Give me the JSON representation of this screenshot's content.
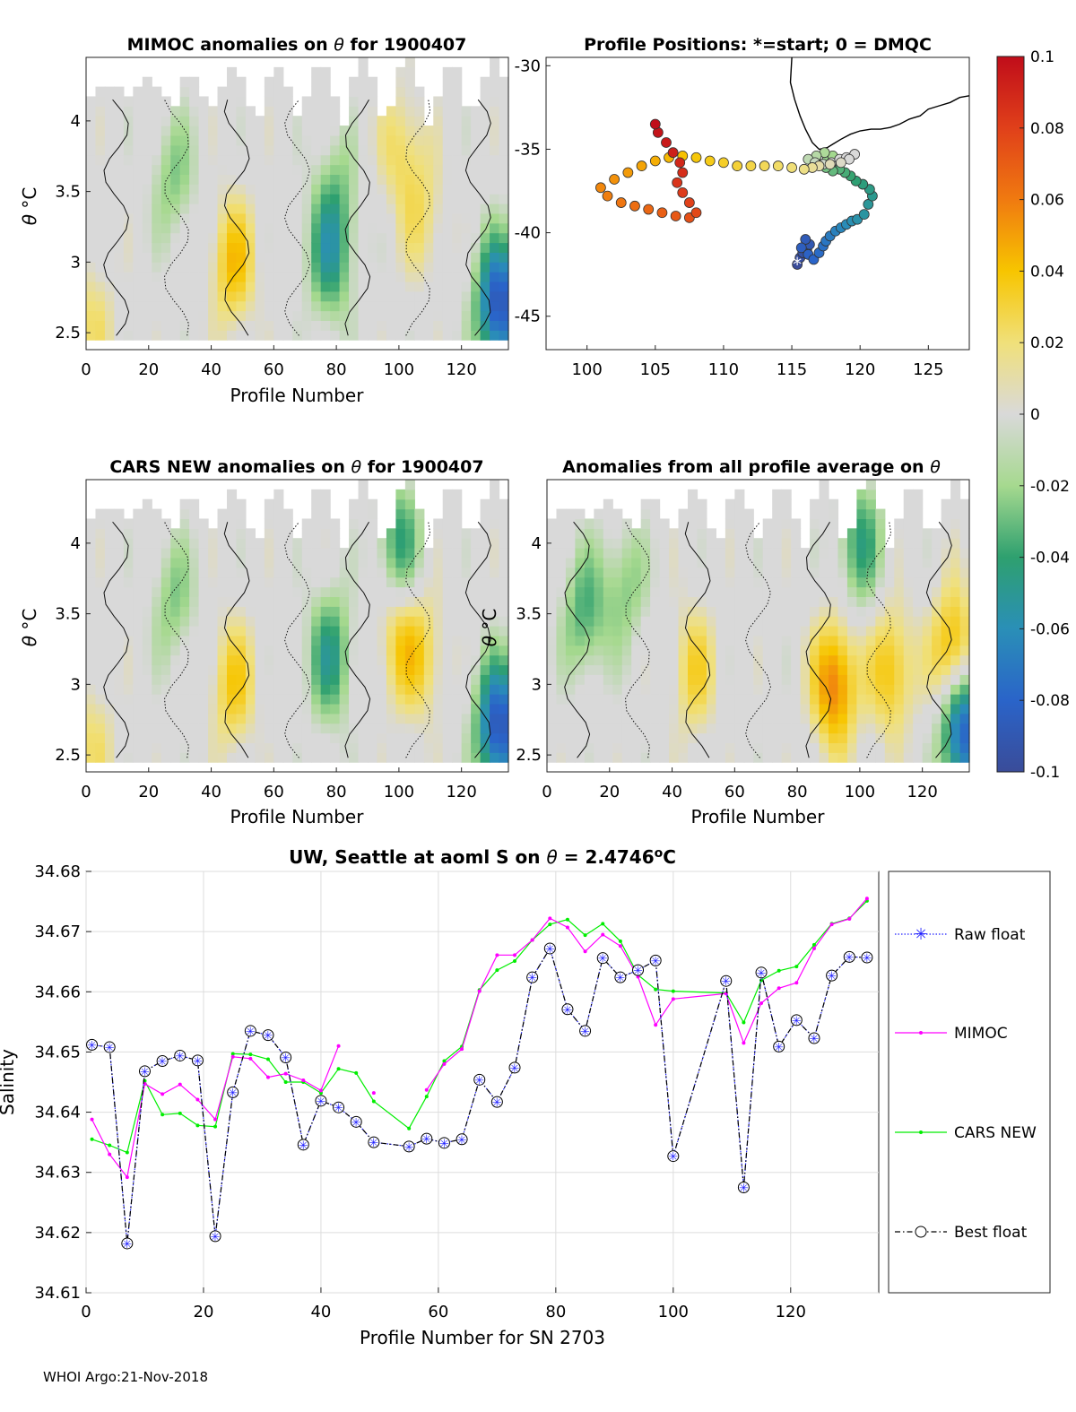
{
  "footer": "WHOI Argo:21-Nov-2018",
  "colors": {
    "raw": "#1f1fff",
    "mimoc": "#ff00ff",
    "cars": "#00ee00",
    "best": "#000000",
    "grid": "#dddddd"
  },
  "chart_data": [
    {
      "id": "mimoc-anom",
      "type": "heatmap",
      "title_prefix": "MIMOC anomalies on",
      "title_symbol": "θ",
      "title_suffix": "for 1900407",
      "xlabel": "Profile Number",
      "ylabel_symbol": "θ",
      "ylabel_unit": "°C",
      "xlim": [
        0,
        135
      ],
      "ylim": [
        2.38,
        4.45
      ],
      "xticks": [
        "0",
        "20",
        "40",
        "60",
        "80",
        "100",
        "120"
      ],
      "yticks": [
        "2.5",
        "3",
        "3.5",
        "4"
      ],
      "anomalies": [
        {
          "x": 28,
          "y": 3.6,
          "value": -0.025
        },
        {
          "x": 78,
          "y": 3.05,
          "value": -0.045
        },
        {
          "x": 80,
          "y": 3.5,
          "value": -0.02
        },
        {
          "x": 101,
          "y": 3.8,
          "value": 0.025
        },
        {
          "x": 108,
          "y": 3.3,
          "value": 0.02
        },
        {
          "x": 47,
          "y": 3.0,
          "value": 0.04
        },
        {
          "x": 2,
          "y": 2.6,
          "value": 0.02
        },
        {
          "x": 132,
          "y": 2.7,
          "value": -0.09
        }
      ]
    },
    {
      "id": "positions",
      "type": "scatter",
      "title": "Profile Positions: *=start; 0 = DMQC",
      "xlim": [
        97,
        128
      ],
      "ylim": [
        -47,
        -29.5
      ],
      "xticks": [
        "100",
        "105",
        "110",
        "115",
        "120",
        "125"
      ],
      "yticks": [
        "-30",
        "-35",
        "-40",
        "-45"
      ],
      "start_marker": "*",
      "track_lon": [
        115.4,
        115.6,
        115.8,
        116.1,
        116.3,
        116.0,
        115.7,
        116.2,
        116.6,
        117.0,
        117.3,
        117.5,
        117.8,
        118.2,
        118.6,
        119.0,
        119.4,
        119.8,
        120.3,
        120.6,
        120.9,
        120.7,
        120.2,
        119.7,
        119.3,
        118.9,
        118.5,
        118.0,
        117.5,
        117.2,
        117.6,
        118.0,
        117.4,
        116.8,
        116.2,
        116.7,
        117.3,
        117.9,
        118.5,
        119.0,
        119.6,
        119.2,
        118.6,
        117.8,
        117.0,
        116.5,
        115.9,
        115.0,
        114.0,
        113.0,
        112.0,
        111.0,
        110.0,
        109.0,
        108.0,
        107.0,
        106.0,
        105.0,
        104.0,
        103.0,
        102.0,
        101.0,
        101.5,
        102.5,
        103.5,
        104.5,
        105.5,
        106.5,
        107.5,
        108.0,
        107.5,
        107.0,
        106.6,
        107.0,
        106.8,
        106.3,
        105.8,
        105.2,
        105.0
      ],
      "track_lat": [
        -41.9,
        -41.5,
        -41.2,
        -41.0,
        -40.7,
        -40.4,
        -40.9,
        -41.3,
        -41.6,
        -41.2,
        -40.8,
        -40.5,
        -40.2,
        -39.9,
        -39.7,
        -39.5,
        -39.3,
        -39.2,
        -38.9,
        -38.3,
        -37.8,
        -37.4,
        -37.1,
        -36.9,
        -36.6,
        -36.4,
        -36.2,
        -36.3,
        -36.1,
        -35.9,
        -35.6,
        -35.4,
        -35.2,
        -35.4,
        -35.6,
        -35.8,
        -35.9,
        -35.8,
        -35.6,
        -35.5,
        -35.3,
        -35.6,
        -35.8,
        -35.9,
        -36.0,
        -36.1,
        -36.2,
        -36.1,
        -36.0,
        -36.0,
        -36.0,
        -36.0,
        -35.8,
        -35.7,
        -35.5,
        -35.4,
        -35.5,
        -35.7,
        -36.0,
        -36.4,
        -36.8,
        -37.3,
        -37.8,
        -38.2,
        -38.4,
        -38.6,
        -38.8,
        -39.0,
        -39.1,
        -38.8,
        -38.2,
        -37.6,
        -37.0,
        -36.4,
        -35.8,
        -35.2,
        -34.6,
        -34.0,
        -33.5
      ],
      "coast_lon": [
        115.0,
        114.9,
        115.2,
        115.6,
        116.0,
        116.5,
        117.0,
        117.6,
        118.0,
        118.6,
        119.3,
        120.0,
        120.8,
        121.5,
        122.2,
        122.9,
        123.6,
        124.4,
        125.0,
        125.8,
        126.6,
        127.3,
        128.0
      ],
      "coast_lat": [
        -29.5,
        -31.0,
        -32.0,
        -33.0,
        -33.8,
        -34.6,
        -35.0,
        -34.9,
        -34.7,
        -34.4,
        -34.1,
        -33.9,
        -33.8,
        -33.8,
        -33.7,
        -33.5,
        -33.2,
        -33.0,
        -32.6,
        -32.4,
        -32.2,
        -31.9,
        -31.8
      ]
    },
    {
      "id": "colorbar",
      "type": "colorbar",
      "ticks": [
        "0.1",
        "0.08",
        "0.06",
        "0.04",
        "0.02",
        "0",
        "-0.02",
        "-0.04",
        "-0.06",
        "-0.08",
        "-0.1"
      ],
      "range": [
        -0.1,
        0.1
      ]
    },
    {
      "id": "cars-anom",
      "type": "heatmap",
      "title_prefix": "CARS NEW anomalies on",
      "title_symbol": "θ",
      "title_suffix": "for 1900407",
      "xlabel": "Profile Number",
      "ylabel_symbol": "θ",
      "ylabel_unit": "°C",
      "xlim": [
        0,
        135
      ],
      "ylim": [
        2.38,
        4.45
      ],
      "xticks": [
        "0",
        "20",
        "40",
        "60",
        "80",
        "100",
        "120"
      ],
      "yticks": [
        "2.5",
        "3",
        "3.5",
        "4"
      ],
      "anomalies": [
        {
          "x": 28,
          "y": 3.6,
          "value": -0.025
        },
        {
          "x": 78,
          "y": 3.2,
          "value": -0.045
        },
        {
          "x": 100,
          "y": 4.0,
          "value": -0.04
        },
        {
          "x": 100,
          "y": 3.3,
          "value": 0.03
        },
        {
          "x": 108,
          "y": 3.2,
          "value": 0.025
        },
        {
          "x": 47,
          "y": 3.0,
          "value": 0.035
        },
        {
          "x": 2,
          "y": 2.6,
          "value": 0.02
        },
        {
          "x": 132,
          "y": 2.7,
          "value": -0.09
        }
      ]
    },
    {
      "id": "all-avg-anom",
      "type": "heatmap",
      "title_prefix": "Anomalies from all profile average on",
      "title_symbol": "θ",
      "title_suffix": "",
      "xlabel": "Profile Number",
      "ylabel_symbol": "θ",
      "ylabel_unit": "°C",
      "xlim": [
        0,
        135
      ],
      "ylim": [
        2.38,
        4.45
      ],
      "xticks": [
        "0",
        "20",
        "40",
        "60",
        "80",
        "100",
        "120"
      ],
      "yticks": [
        "2.5",
        "3",
        "3.5",
        "4"
      ],
      "anomalies": [
        {
          "x": 12,
          "y": 3.5,
          "value": -0.035
        },
        {
          "x": 25,
          "y": 3.7,
          "value": -0.025
        },
        {
          "x": 100,
          "y": 4.0,
          "value": -0.04
        },
        {
          "x": 92,
          "y": 3.0,
          "value": 0.06
        },
        {
          "x": 110,
          "y": 3.1,
          "value": 0.04
        },
        {
          "x": 130,
          "y": 3.2,
          "value": 0.055
        },
        {
          "x": 47,
          "y": 3.1,
          "value": 0.03
        },
        {
          "x": 133,
          "y": 2.7,
          "value": -0.09
        }
      ]
    },
    {
      "id": "salinity",
      "type": "line",
      "title": "UW, Seattle at aoml S on",
      "title_symbol": "θ",
      "title_value": "= 2.4746",
      "title_unit_sup": "o",
      "title_unit": "C",
      "xlabel": "Profile Number for SN 2703",
      "ylabel": "Salinity",
      "xlim": [
        0,
        135
      ],
      "ylim": [
        34.61,
        34.68
      ],
      "xticks": [
        "0",
        "20",
        "40",
        "60",
        "80",
        "100",
        "120"
      ],
      "yticks": [
        "34.61",
        "34.62",
        "34.63",
        "34.64",
        "34.65",
        "34.66",
        "34.67",
        "34.68"
      ],
      "legend": [
        "Raw float",
        "MIMOC",
        "CARS NEW",
        "Best float"
      ],
      "float_x": [
        1,
        4,
        7,
        10,
        13,
        16,
        19,
        22,
        25,
        28,
        31,
        34,
        37,
        40,
        43,
        46,
        49,
        55,
        58,
        61,
        64,
        67,
        70,
        73,
        76,
        79,
        82,
        85,
        88,
        91,
        94,
        97,
        100,
        109,
        112,
        115,
        118,
        121,
        124,
        127,
        130,
        133
      ],
      "float_y": [
        34.6512,
        34.6508,
        34.6182,
        34.6468,
        34.6485,
        34.6494,
        34.6486,
        34.6194,
        34.6433,
        34.6535,
        34.6528,
        34.6491,
        34.6346,
        34.6419,
        34.6408,
        34.6384,
        34.635,
        34.6343,
        34.6356,
        34.6349,
        34.6355,
        34.6454,
        34.6417,
        34.6474,
        34.6624,
        34.6672,
        34.6571,
        34.6535,
        34.6656,
        34.6624,
        34.6636,
        34.6652,
        34.6327,
        34.6618,
        34.6275,
        34.6632,
        34.6509,
        34.6553,
        34.6523,
        34.6627,
        34.6658,
        34.6657
      ],
      "mimoc_segments": [
        {
          "x": [
            1,
            4,
            7,
            10,
            13,
            16,
            19,
            22,
            25,
            28,
            31,
            34,
            37,
            40,
            43
          ],
          "y": [
            34.6388,
            34.633,
            34.6292,
            34.6447,
            34.643,
            34.6446,
            34.6421,
            34.6388,
            34.6492,
            34.6489,
            34.6458,
            34.6464,
            34.6453,
            34.6436,
            34.651
          ]
        },
        {
          "x": [
            49
          ],
          "y": [
            34.6432
          ]
        },
        {
          "x": [
            58,
            61,
            64,
            67,
            70,
            73,
            76,
            79,
            82,
            85,
            88,
            91,
            94,
            97,
            100,
            109,
            112,
            115,
            118,
            121,
            124,
            127,
            130,
            133
          ],
          "y": [
            34.6437,
            34.648,
            34.6505,
            34.6601,
            34.6661,
            34.6661,
            34.6686,
            34.6722,
            34.6707,
            34.6667,
            34.6695,
            34.6676,
            34.6625,
            34.6545,
            34.6588,
            34.6597,
            34.6515,
            34.6581,
            34.6606,
            34.6615,
            34.6672,
            34.6712,
            34.6721,
            34.6755
          ]
        }
      ],
      "cars_x": [
        1,
        4,
        7,
        10,
        13,
        16,
        19,
        22,
        25,
        28,
        31,
        34,
        37,
        40,
        43,
        46,
        49,
        55,
        58,
        61,
        64,
        67,
        70,
        73,
        76,
        79,
        82,
        85,
        88,
        91,
        94,
        97,
        100,
        109,
        112,
        115,
        118,
        121,
        124,
        127,
        130,
        133
      ],
      "cars_y": [
        34.6355,
        34.6345,
        34.6333,
        34.6452,
        34.6396,
        34.6398,
        34.6378,
        34.6376,
        34.6497,
        34.6496,
        34.6488,
        34.645,
        34.645,
        34.6432,
        34.6472,
        34.6465,
        34.6418,
        34.6373,
        34.6426,
        34.6485,
        34.6509,
        34.6603,
        34.6636,
        34.6651,
        34.6686,
        34.6712,
        34.672,
        34.6694,
        34.6713,
        34.6684,
        34.6628,
        34.6604,
        34.6601,
        34.6598,
        34.6549,
        34.6619,
        34.6635,
        34.6642,
        34.6678,
        34.6713,
        34.6722,
        34.6751
      ]
    }
  ]
}
